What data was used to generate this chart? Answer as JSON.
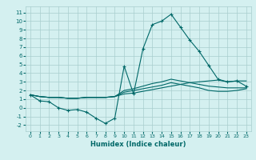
{
  "xlabel": "Humidex (Indice chaleur)",
  "background_color": "#d4f0f0",
  "grid_color": "#a8cece",
  "line_color": "#006868",
  "xlim": [
    -0.5,
    23.5
  ],
  "ylim": [
    -2.7,
    11.7
  ],
  "xticks": [
    0,
    1,
    2,
    3,
    4,
    5,
    6,
    7,
    8,
    9,
    10,
    11,
    12,
    13,
    14,
    15,
    16,
    17,
    18,
    19,
    20,
    21,
    22,
    23
  ],
  "yticks": [
    -2,
    -1,
    0,
    1,
    2,
    3,
    4,
    5,
    6,
    7,
    8,
    9,
    10,
    11
  ],
  "series": [
    {
      "x": [
        0,
        1,
        2,
        3,
        4,
        5,
        6,
        7,
        8,
        9,
        10,
        11,
        12,
        13,
        14,
        15,
        16,
        17,
        18,
        19,
        20,
        21,
        22,
        23
      ],
      "y": [
        1.5,
        0.8,
        0.7,
        0.0,
        -0.3,
        -0.2,
        -0.5,
        -1.2,
        -1.8,
        -1.2,
        4.8,
        1.6,
        6.8,
        9.6,
        10.0,
        10.8,
        9.3,
        7.8,
        6.5,
        4.9,
        3.3,
        3.0,
        3.1,
        2.5
      ],
      "marker": "+"
    },
    {
      "x": [
        0,
        1,
        2,
        3,
        4,
        5,
        6,
        7,
        8,
        9,
        10,
        11,
        12,
        13,
        14,
        15,
        16,
        17,
        18,
        19,
        20,
        21,
        22,
        23
      ],
      "y": [
        1.5,
        1.3,
        1.2,
        1.2,
        1.1,
        1.1,
        1.2,
        1.2,
        1.2,
        1.3,
        1.6,
        1.7,
        1.9,
        2.1,
        2.3,
        2.5,
        2.7,
        2.9,
        3.0,
        3.1,
        3.2,
        3.0,
        3.1,
        3.1
      ],
      "marker": null
    },
    {
      "x": [
        0,
        1,
        2,
        3,
        4,
        5,
        6,
        7,
        8,
        9,
        10,
        11,
        12,
        13,
        14,
        15,
        16,
        17,
        18,
        19,
        20,
        21,
        22,
        23
      ],
      "y": [
        1.5,
        1.3,
        1.2,
        1.2,
        1.1,
        1.1,
        1.2,
        1.2,
        1.2,
        1.3,
        2.0,
        2.2,
        2.5,
        2.8,
        3.0,
        3.3,
        3.1,
        2.9,
        2.7,
        2.5,
        2.4,
        2.3,
        2.3,
        2.3
      ],
      "marker": null
    },
    {
      "x": [
        0,
        1,
        2,
        3,
        4,
        5,
        6,
        7,
        8,
        9,
        10,
        11,
        12,
        13,
        14,
        15,
        16,
        17,
        18,
        19,
        20,
        21,
        22,
        23
      ],
      "y": [
        1.5,
        1.3,
        1.2,
        1.2,
        1.1,
        1.1,
        1.2,
        1.2,
        1.2,
        1.3,
        1.8,
        2.0,
        2.2,
        2.4,
        2.6,
        2.9,
        2.7,
        2.5,
        2.3,
        2.0,
        1.9,
        1.9,
        2.0,
        2.2
      ],
      "marker": null
    }
  ]
}
